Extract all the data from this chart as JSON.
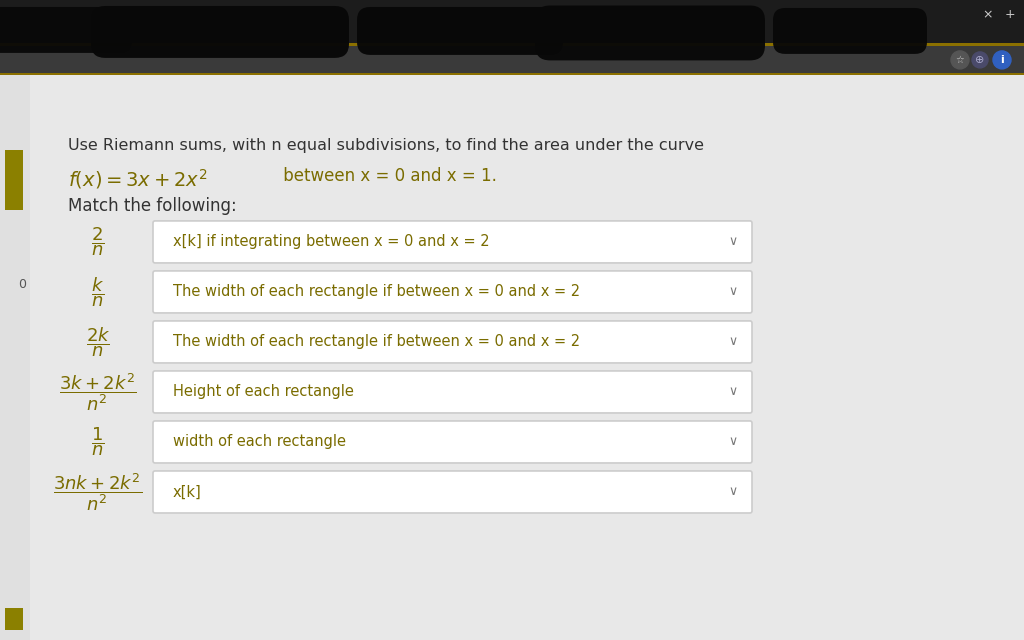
{
  "bg_color": "#e8e8e8",
  "page_bg": "#f5f5f5",
  "content_bg": "#ffffff",
  "olive": "#7a6c00",
  "sidebar_color": "#8B8000",
  "title_text_color": "#333333",
  "box_text_color": "#7a6c00",
  "box_bg": "#ffffff",
  "box_border": "#cccccc",
  "title_line1": "Use Riemann sums, with n equal subdivisions, to find the area under the curve",
  "match_label": "Match the following:",
  "right_labels": [
    "x[k] if integrating between x = 0 and x = 2",
    "The width of each rectangle if between x = 0 and x = 2",
    "The width of each rectangle if between x = 0 and x = 2",
    "Height of each rectangle",
    "width of each rectangle",
    "x[k]"
  ],
  "chevron": "∨",
  "header_dark": "#1c1c1c",
  "toolbar_dark": "#3a3a3a",
  "gold_strip": "#8B7000"
}
